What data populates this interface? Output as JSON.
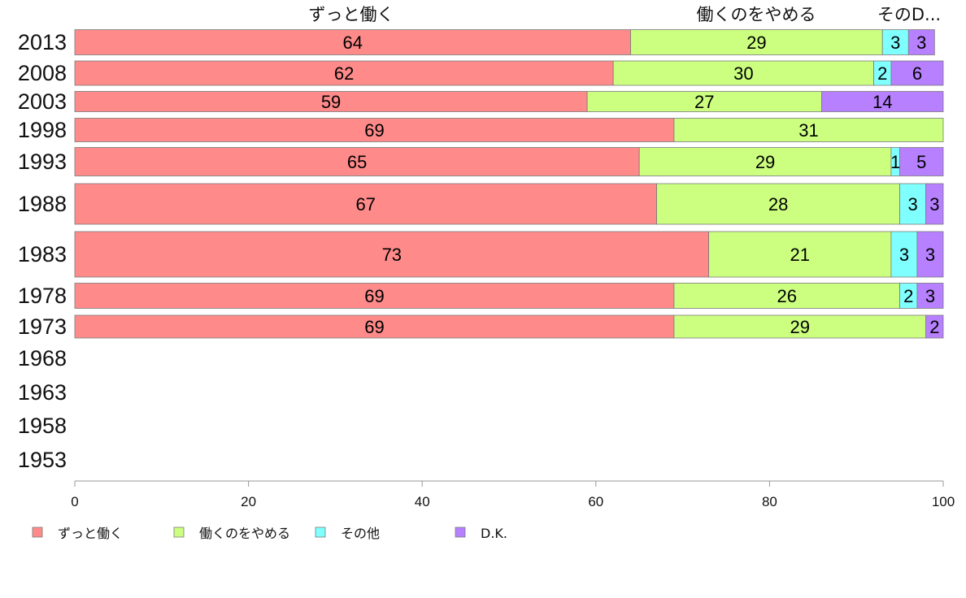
{
  "chart_data": {
    "type": "bar",
    "orientation": "horizontal",
    "stacked": true,
    "categories": [
      "2013",
      "2008",
      "2003",
      "1998",
      "1993",
      "1988",
      "1983",
      "1978",
      "1973",
      "1968",
      "1963",
      "1958",
      "1953"
    ],
    "series": [
      {
        "name": "ずっと働く",
        "color": "#ff8a8a",
        "values": [
          64,
          62,
          59,
          69,
          65,
          67,
          73,
          69,
          69,
          null,
          null,
          null,
          null
        ]
      },
      {
        "name": "働くのをやめる",
        "color": "#ccff80",
        "values": [
          29,
          30,
          27,
          31,
          29,
          28,
          21,
          26,
          29,
          null,
          null,
          null,
          null
        ]
      },
      {
        "name": "その他",
        "color": "#80ffff",
        "values": [
          3,
          2,
          null,
          null,
          1,
          3,
          3,
          2,
          null,
          null,
          null,
          null,
          null
        ]
      },
      {
        "name": "D.K.",
        "color": "#b680ff",
        "values": [
          3,
          6,
          14,
          null,
          5,
          3,
          3,
          3,
          2,
          null,
          null,
          null,
          null
        ]
      }
    ],
    "column_headers": [
      "ずっと働く",
      "働くのをやめる",
      "そのD..."
    ],
    "xlim": [
      0,
      100
    ],
    "xticks": [
      "0",
      "20",
      "40",
      "60",
      "80",
      "100"
    ],
    "title": "",
    "xlabel": "",
    "ylabel": "",
    "grid": false,
    "legend_position": "bottom"
  }
}
